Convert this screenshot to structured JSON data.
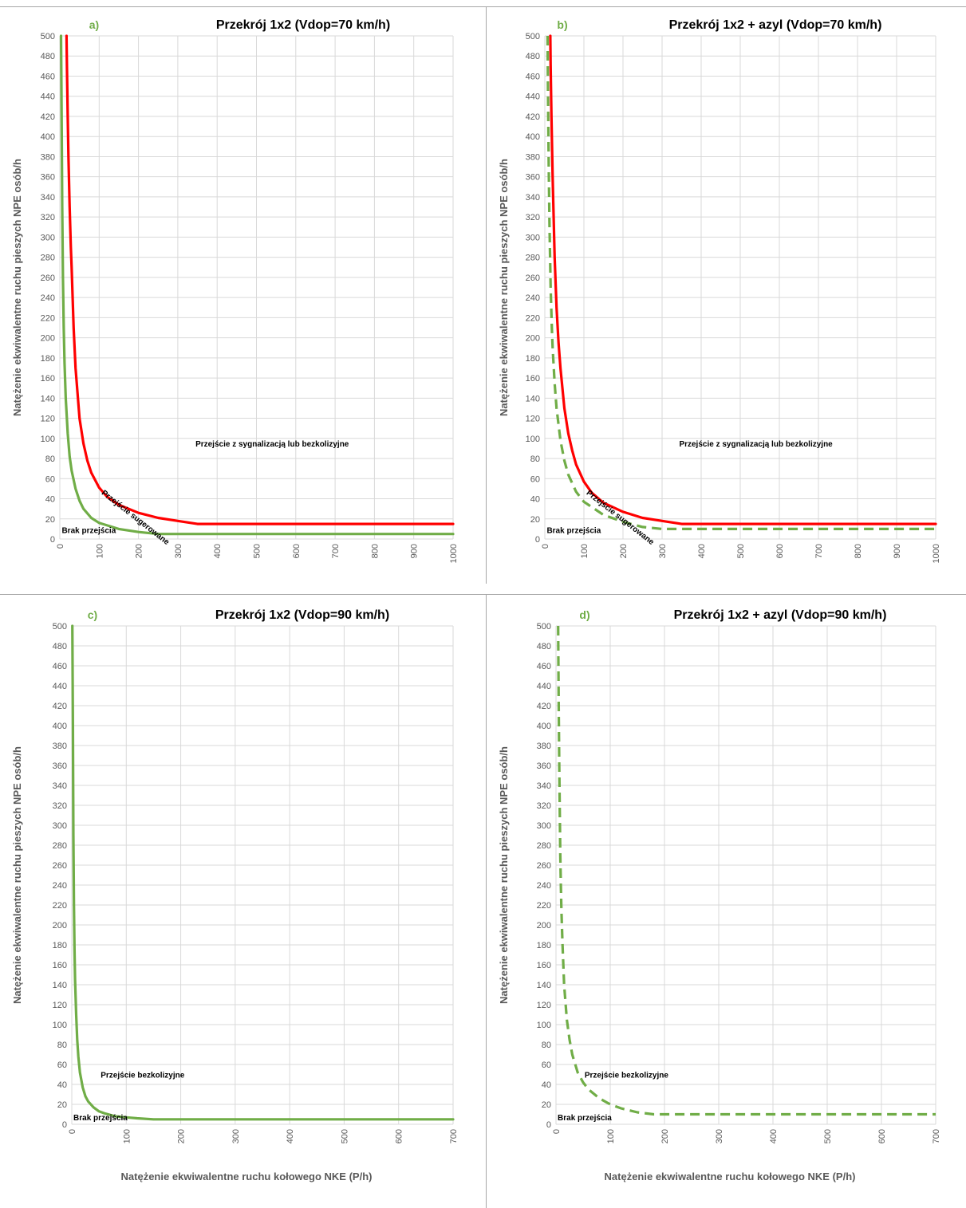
{
  "colors": {
    "red": "#ff0000",
    "green": "#70ad47",
    "grid": "#d9d9d9",
    "text": "#595959"
  },
  "chart_data": [
    {
      "id": "a",
      "type": "line",
      "panel_label": "a)",
      "title": "Przekrój 1x2 (Vdop=70 km/h)",
      "ylabel": "Natężenie ekwiwalentne ruchu pieszych  NPE osób/h",
      "xlabel": "",
      "xlim": [
        0,
        1000
      ],
      "ylim": [
        0,
        500
      ],
      "xticks": [
        0,
        100,
        200,
        300,
        400,
        500,
        600,
        700,
        800,
        900,
        1000
      ],
      "yticks": [
        0,
        20,
        40,
        60,
        80,
        100,
        120,
        140,
        160,
        180,
        200,
        220,
        240,
        260,
        280,
        300,
        320,
        340,
        360,
        380,
        400,
        420,
        440,
        460,
        480,
        500
      ],
      "grid": true,
      "series": [
        {
          "color": "#ff0000",
          "dash": false,
          "x": [
            17,
            18,
            20,
            22,
            25,
            28,
            30,
            35,
            40,
            50,
            60,
            70,
            80,
            100,
            120,
            150,
            200,
            250,
            300,
            350,
            1000
          ],
          "y": [
            500,
            470,
            420,
            380,
            330,
            290,
            270,
            210,
            170,
            120,
            95,
            78,
            66,
            51,
            42,
            34,
            26,
            21,
            18,
            15,
            15
          ]
        },
        {
          "color": "#70ad47",
          "dash": false,
          "x": [
            3,
            4,
            6,
            8,
            10,
            12,
            15,
            20,
            25,
            30,
            40,
            50,
            60,
            80,
            100,
            150,
            200,
            250,
            280,
            1000
          ],
          "y": [
            500,
            450,
            330,
            260,
            210,
            175,
            140,
            105,
            82,
            68,
            50,
            38,
            30,
            21,
            16,
            10,
            7,
            5,
            5,
            5
          ]
        }
      ],
      "annotations": [
        {
          "text": "Przejście z sygnalizacją lub bezkolizyjne",
          "x": 540,
          "y": 92
        },
        {
          "text": "Przejście sugerowane",
          "x": 105,
          "y": 45
        },
        {
          "text": "Brak przejścia",
          "x": 5,
          "y": 6
        }
      ]
    },
    {
      "id": "b",
      "type": "line",
      "panel_label": "b)",
      "title": "Przekrój 1x2 + azyl (Vdop=70 km/h)",
      "ylabel": "Natężenie ekwiwalentne ruchu pieszych  NPE osób/h",
      "xlabel": "",
      "xlim": [
        0,
        1000
      ],
      "ylim": [
        0,
        500
      ],
      "xticks": [
        0,
        100,
        200,
        300,
        400,
        500,
        600,
        700,
        800,
        900,
        1000
      ],
      "yticks": [
        0,
        20,
        40,
        60,
        80,
        100,
        120,
        140,
        160,
        180,
        200,
        220,
        240,
        260,
        280,
        300,
        320,
        340,
        360,
        380,
        400,
        420,
        440,
        460,
        480,
        500
      ],
      "grid": true,
      "series": [
        {
          "color": "#ff0000",
          "dash": false,
          "x": [
            14,
            15,
            17,
            20,
            25,
            30,
            35,
            40,
            50,
            60,
            70,
            80,
            100,
            120,
            150,
            200,
            250,
            300,
            350,
            1000
          ],
          "y": [
            500,
            470,
            420,
            360,
            280,
            230,
            195,
            170,
            130,
            105,
            88,
            74,
            57,
            46,
            36,
            27,
            21,
            18,
            15,
            15
          ]
        },
        {
          "color": "#70ad47",
          "dash": true,
          "x": [
            7,
            8,
            10,
            12,
            15,
            18,
            20,
            25,
            30,
            40,
            50,
            60,
            80,
            100,
            150,
            200,
            250,
            300,
            1000
          ],
          "y": [
            500,
            450,
            370,
            310,
            250,
            210,
            190,
            155,
            130,
            98,
            78,
            64,
            47,
            37,
            24,
            17,
            12,
            10,
            10
          ]
        }
      ],
      "annotations": [
        {
          "text": "Przejście z sygnalizacją lub bezkolizyjne",
          "x": 540,
          "y": 92
        },
        {
          "text": "Przejście sugerowane",
          "x": 105,
          "y": 45
        },
        {
          "text": "Brak przejścia",
          "x": 5,
          "y": 6
        }
      ]
    },
    {
      "id": "c",
      "type": "line",
      "panel_label": "c)",
      "title": "Przekrój 1x2 (Vdop=90 km/h)",
      "ylabel": "Natężenie ekwiwalentne ruchu pieszych  NPE osób/h",
      "xlabel": "Natężenie ekwiwalentne ruchu kołowego NKE (P/h)",
      "xlim": [
        0,
        700
      ],
      "ylim": [
        0,
        500
      ],
      "xticks": [
        0,
        100,
        200,
        300,
        400,
        500,
        600,
        700
      ],
      "yticks": [
        0,
        20,
        40,
        60,
        80,
        100,
        120,
        140,
        160,
        180,
        200,
        220,
        240,
        260,
        280,
        300,
        320,
        340,
        360,
        380,
        400,
        420,
        440,
        460,
        480,
        500
      ],
      "grid": true,
      "series": [
        {
          "color": "#70ad47",
          "dash": false,
          "x": [
            1,
            2,
            3,
            4,
            5,
            6,
            8,
            10,
            12,
            15,
            20,
            25,
            30,
            40,
            50,
            60,
            80,
            100,
            120,
            150,
            700
          ],
          "y": [
            500,
            400,
            290,
            220,
            175,
            145,
            110,
            85,
            68,
            52,
            37,
            28,
            23,
            17,
            13,
            11,
            8,
            7,
            6,
            5,
            5
          ]
        }
      ],
      "annotations": [
        {
          "text": "Przejście bezkolizyjne",
          "x": 130,
          "y": 47
        },
        {
          "text": "Brak przejścia",
          "x": 3,
          "y": 4
        }
      ]
    },
    {
      "id": "d",
      "type": "line",
      "panel_label": "d)",
      "title": "Przekrój 1x2 + azyl (Vdop=90 km/h)",
      "ylabel": "Natężenie ekwiwalentne ruchu pieszych  NPE osób/h",
      "xlabel": "Natężenie ekwiwalentne ruchu kołowego NKE (P/h)",
      "xlim": [
        0,
        700
      ],
      "ylim": [
        0,
        500
      ],
      "xticks": [
        0,
        100,
        200,
        300,
        400,
        500,
        600,
        700
      ],
      "yticks": [
        0,
        20,
        40,
        60,
        80,
        100,
        120,
        140,
        160,
        180,
        200,
        220,
        240,
        260,
        280,
        300,
        320,
        340,
        360,
        380,
        400,
        420,
        440,
        460,
        480,
        500
      ],
      "grid": true,
      "series": [
        {
          "color": "#70ad47",
          "dash": true,
          "x": [
            4,
            5,
            6,
            7,
            8,
            9,
            10,
            12,
            15,
            20,
            25,
            30,
            40,
            50,
            60,
            80,
            100,
            120,
            150,
            180,
            700
          ],
          "y": [
            500,
            420,
            360,
            310,
            270,
            240,
            215,
            180,
            140,
            105,
            85,
            70,
            52,
            42,
            35,
            26,
            20,
            16,
            12,
            10,
            10
          ]
        }
      ],
      "annotations": [
        {
          "text": "Przejście bezkolizyjne",
          "x": 130,
          "y": 47
        },
        {
          "text": "Brak przejścia",
          "x": 3,
          "y": 4
        }
      ]
    }
  ]
}
